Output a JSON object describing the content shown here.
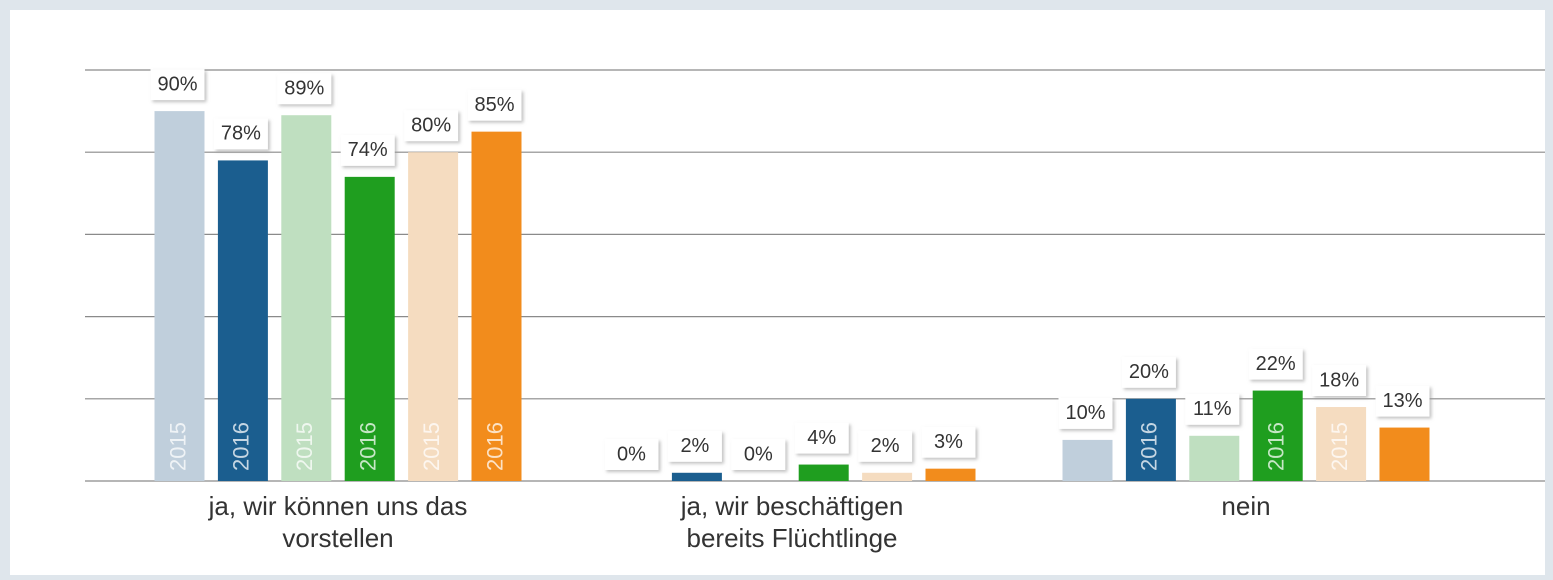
{
  "chart_data": {
    "type": "bar",
    "categories": [
      "ja, wir können uns das vorstellen",
      "ja, wir beschäftigen bereits Flüchtlinge",
      "nein"
    ],
    "series": [
      {
        "name": "2015",
        "color": "#c0cfdc",
        "values": [
          90,
          0,
          10
        ],
        "value_labels": [
          "90%",
          "0%",
          "10%"
        ]
      },
      {
        "name": "2016",
        "color": "#1b5e8f",
        "values": [
          78,
          2,
          20
        ],
        "value_labels": [
          "78%",
          "2%",
          "20%"
        ]
      },
      {
        "name": "2015",
        "color": "#bfdfc0",
        "values": [
          89,
          0,
          11
        ],
        "value_labels": [
          "89%",
          "0%",
          "11%"
        ]
      },
      {
        "name": "2016",
        "color": "#1f9e1f",
        "values": [
          74,
          4,
          22
        ],
        "value_labels": [
          "74%",
          "4%",
          "22%"
        ]
      },
      {
        "name": "2015",
        "color": "#f5dcc0",
        "values": [
          80,
          2,
          18
        ],
        "value_labels": [
          "80%",
          "2%",
          "18%"
        ]
      },
      {
        "name": "2016",
        "color": "#f28c1c",
        "values": [
          85,
          3,
          13
        ],
        "value_labels": [
          "85%",
          "3%",
          "13%"
        ]
      }
    ],
    "ylim": [
      0,
      100
    ],
    "yticks": [
      0,
      20,
      40,
      60,
      80,
      100
    ],
    "grid": true
  }
}
